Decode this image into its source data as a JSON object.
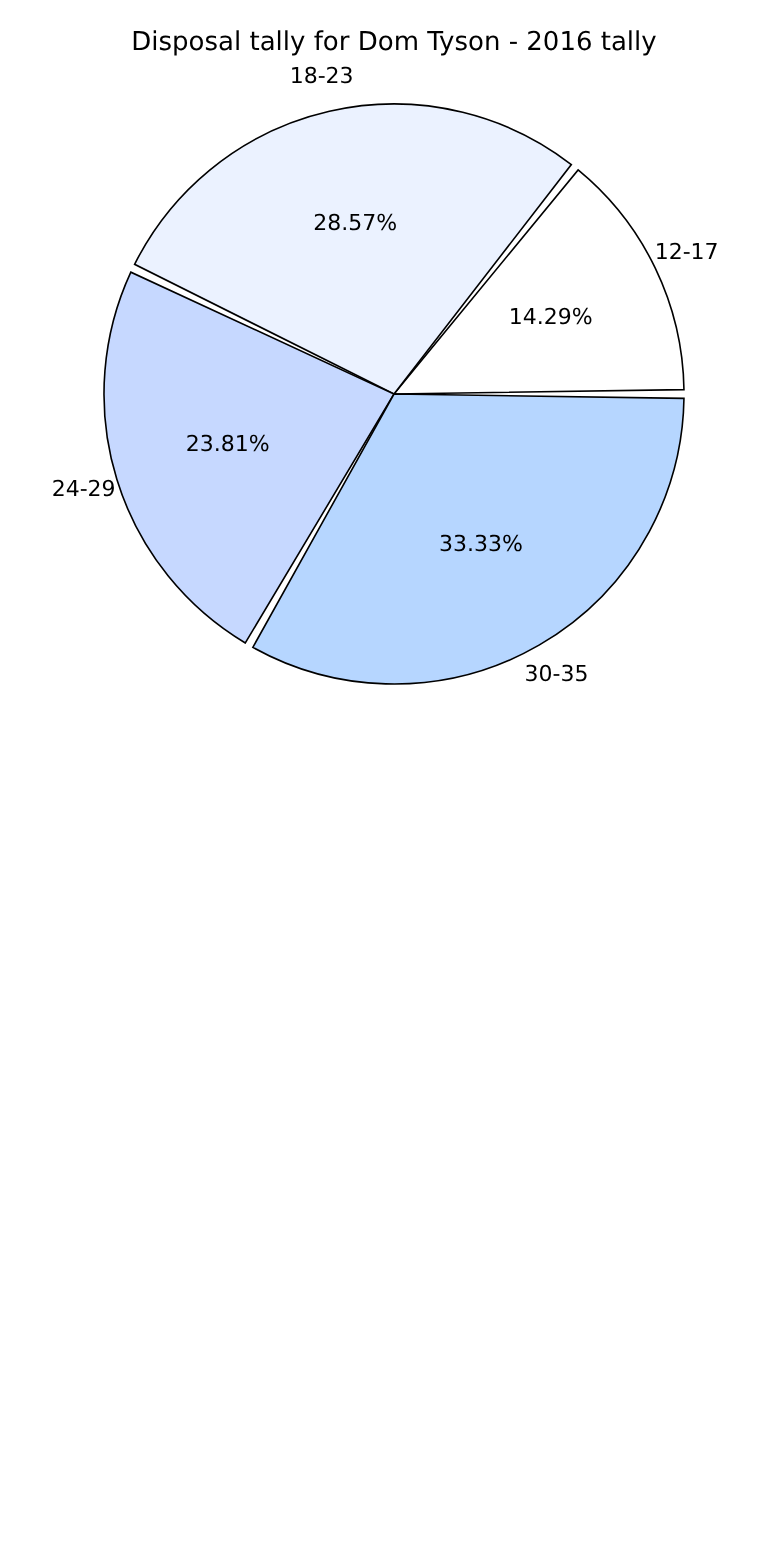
{
  "chart_data": {
    "type": "pie",
    "title": "Disposal tally for Dom Tyson - 2016 tally",
    "categories": [
      "12-17",
      "18-23",
      "24-29",
      "30-35"
    ],
    "values": [
      14.29,
      28.57,
      23.81,
      33.33
    ],
    "colors": [
      "#ffffff",
      "#ebf2ff",
      "#c6d8ff",
      "#b6d6ff"
    ],
    "value_labels": [
      "14.29%",
      "28.57%",
      "23.81%",
      "33.33%"
    ]
  }
}
